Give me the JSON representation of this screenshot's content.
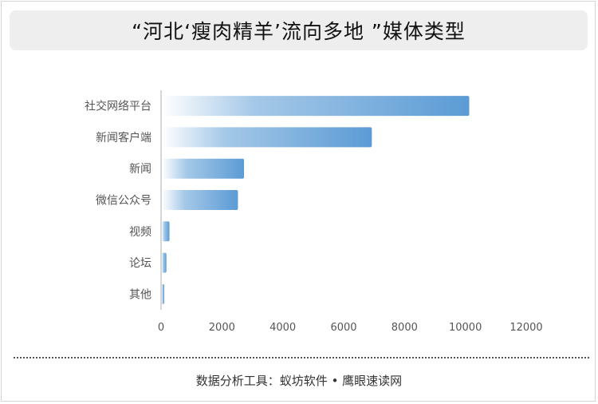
{
  "title": "“河北‘瘦肉精羊’流向多地 ”媒体类型",
  "footer": "数据分析工具：蚁坊软件 • 鹰眼速读网",
  "chart_data": {
    "type": "bar",
    "orientation": "horizontal",
    "categories": [
      "社交网络平台",
      "新闻客户端",
      "新闻",
      "微信公众号",
      "视频",
      "论坛",
      "其他"
    ],
    "values": [
      10100,
      6900,
      2700,
      2500,
      250,
      150,
      80
    ],
    "xlim": [
      0,
      12000
    ],
    "xticks": [
      0,
      2000,
      4000,
      6000,
      8000,
      10000,
      12000
    ],
    "grid": false,
    "bar_color": "#5b9bd5"
  }
}
